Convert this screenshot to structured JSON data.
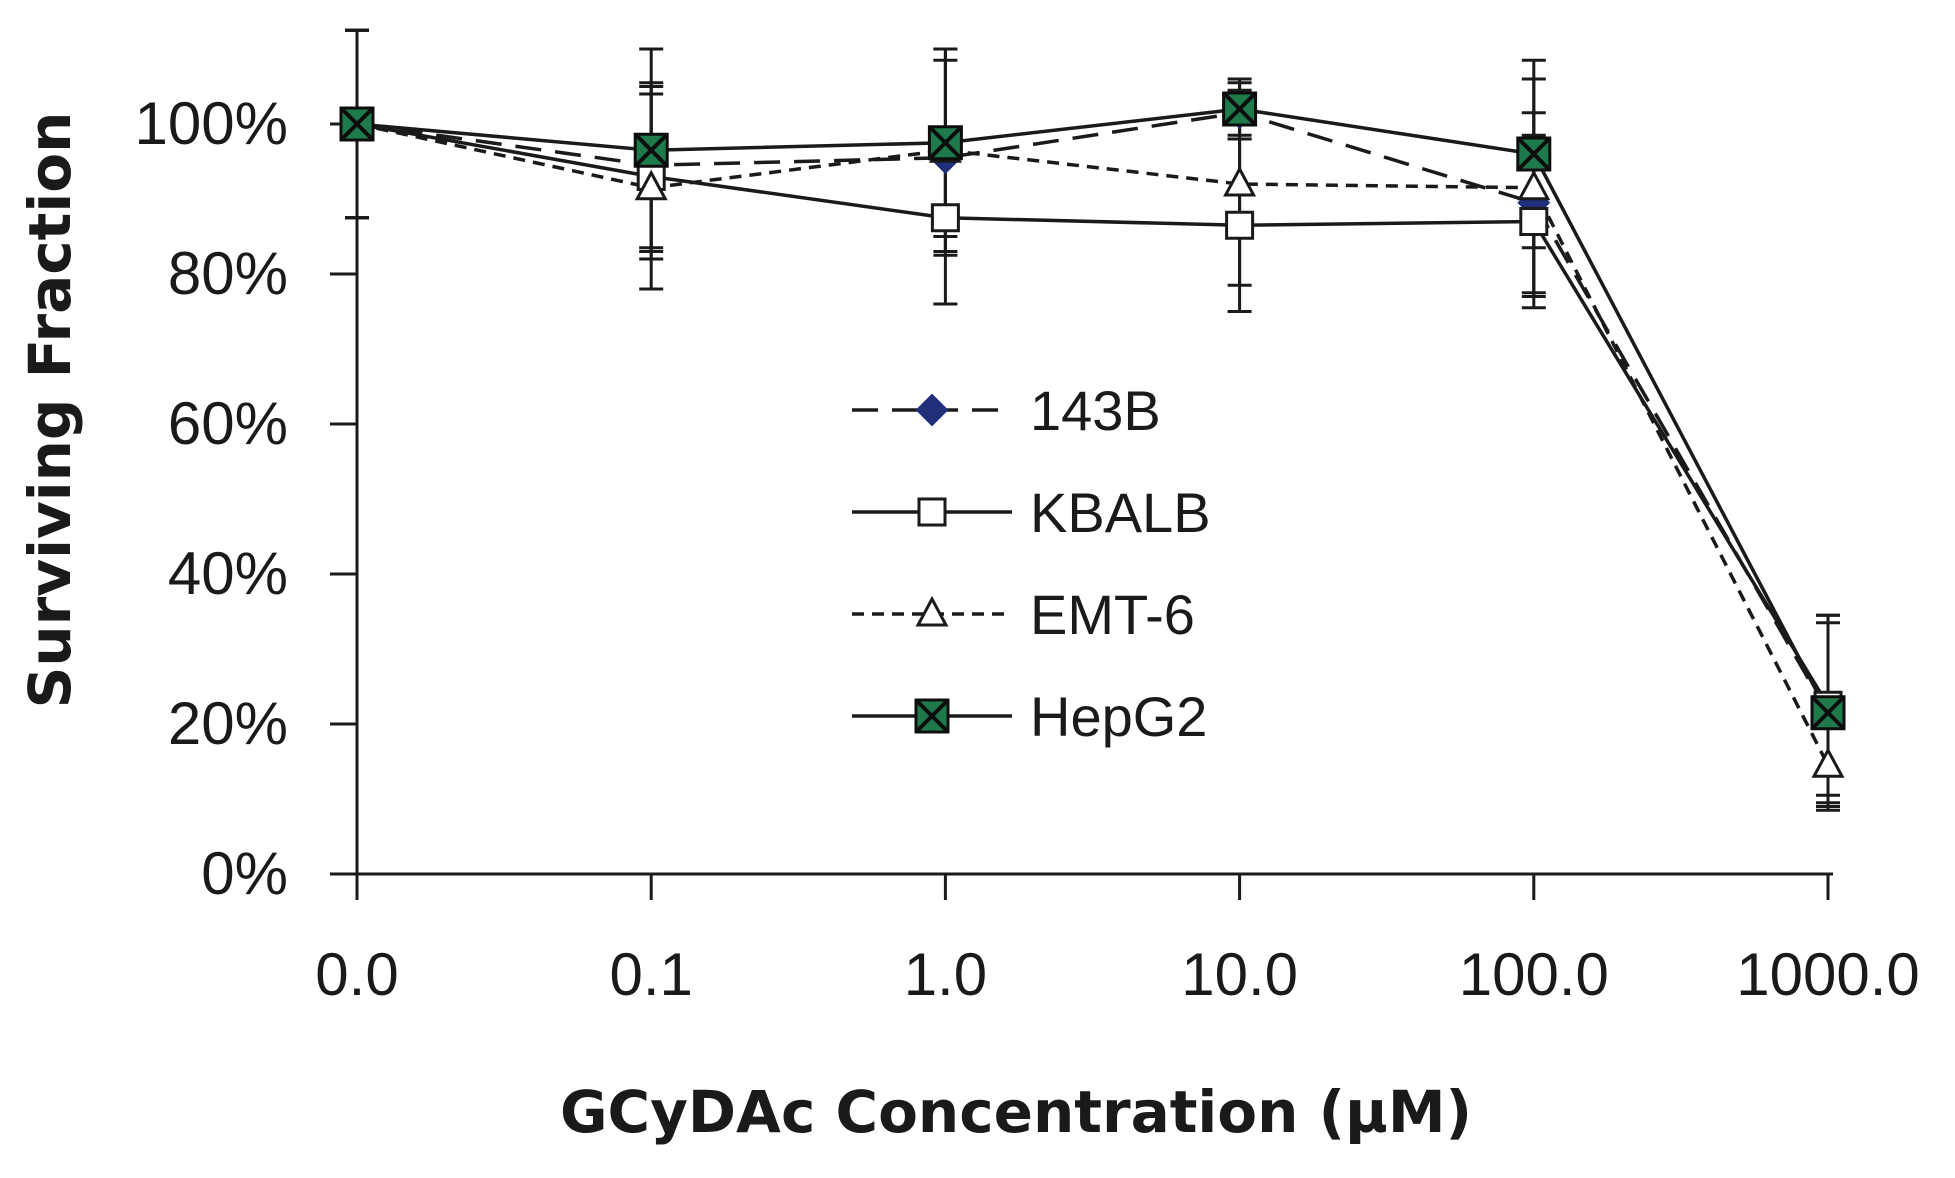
{
  "chart_data": {
    "type": "line",
    "title": "",
    "xlabel": "GCyDAc Concentration (µM)",
    "ylabel": "Surviving Fraction",
    "categories": [
      "0.0",
      "0.1",
      "1.0",
      "10.0",
      "100.0",
      "1000.0"
    ],
    "y_ticks": [
      "0%",
      "20%",
      "40%",
      "60%",
      "80%",
      "100%"
    ],
    "ylim": [
      0,
      110
    ],
    "legend_position": "center",
    "series": [
      {
        "name": "143B",
        "values": [
          100,
          94.5,
          95.5,
          101.5,
          89.5,
          21.5
        ],
        "errors": [
          12.5,
          11,
          13,
          3,
          12,
          12
        ],
        "line": "dashed",
        "marker": "diamond",
        "marker_color": "#1f2f7a"
      },
      {
        "name": "KBALB",
        "values": [
          100,
          93,
          87.5,
          86.5,
          87,
          22.5
        ],
        "errors": [
          12.5,
          11,
          11.5,
          11.5,
          11.5,
          12
        ],
        "line": "solid",
        "marker": "square-open",
        "marker_color": "#ffffff"
      },
      {
        "name": "EMT-6",
        "values": [
          100,
          91.5,
          96.5,
          92,
          91.5,
          14.5
        ],
        "errors": [
          12.5,
          13.5,
          13.5,
          13.5,
          14.5,
          5.5
        ],
        "line": "dotted",
        "marker": "triangle-open",
        "marker_color": "#ffffff"
      },
      {
        "name": "HepG2",
        "values": [
          100,
          96.5,
          97.5,
          102,
          96,
          21.5
        ],
        "errors": [
          12.5,
          13.5,
          12.5,
          4,
          12.5,
          13
        ],
        "line": "solid",
        "marker": "square-x-filled",
        "marker_color": "#1e7a4a"
      }
    ]
  }
}
